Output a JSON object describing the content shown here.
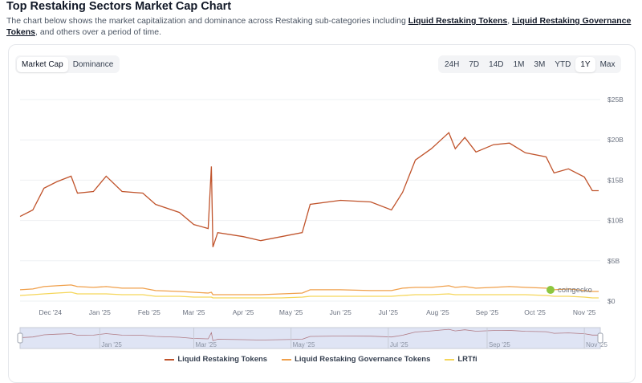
{
  "header": {
    "title": "Top Restaking Sectors Market Cap Chart",
    "desc_pre": "The chart below shows the market capitalization and dominance across Restaking sub-categories including ",
    "link1": "Liquid Restaking Tokens",
    "sep": ", ",
    "link2": "Liquid Restaking Governance Tokens",
    "desc_post": ", and others over a period of time."
  },
  "view_toggle": [
    {
      "label": "Market Cap",
      "active": true
    },
    {
      "label": "Dominance",
      "active": false
    }
  ],
  "ranges": [
    {
      "label": "24H"
    },
    {
      "label": "7D"
    },
    {
      "label": "14D"
    },
    {
      "label": "1M"
    },
    {
      "label": "3M"
    },
    {
      "label": "YTD"
    },
    {
      "label": "1Y",
      "active": true
    },
    {
      "label": "Max"
    }
  ],
  "watermark": "coingecko",
  "chart_data": {
    "type": "line",
    "x_range": [
      "2024-11-12",
      "2025-11-11"
    ],
    "ylim": [
      0,
      25
    ],
    "y_unit": "billion USD",
    "y_ticks": [
      "$0",
      "$5B",
      "$10B",
      "$15B",
      "$20B",
      "$25B"
    ],
    "x_ticks": [
      "Dec '24",
      "Jan '25",
      "Feb '25",
      "Mar '25",
      "Apr '25",
      "May '25",
      "Jun '25",
      "Jul '25",
      "Aug '25",
      "Sep '25",
      "Oct '25",
      "Nov '25"
    ],
    "navigator_ticks": [
      "Jan '25",
      "Mar '25",
      "May '25",
      "Jul '25",
      "Sep '25",
      "Nov '25"
    ],
    "grid": true,
    "legend_position": "bottom",
    "x": [
      "2024-11-12",
      "2024-11-20",
      "2024-11-27",
      "2024-12-05",
      "2024-12-14",
      "2024-12-18",
      "2024-12-28",
      "2025-01-05",
      "2025-01-15",
      "2025-01-28",
      "2025-02-05",
      "2025-02-20",
      "2025-03-01",
      "2025-03-10",
      "2025-03-12",
      "2025-03-13",
      "2025-03-16",
      "2025-04-01",
      "2025-04-12",
      "2025-04-25",
      "2025-05-08",
      "2025-05-13",
      "2025-06-01",
      "2025-06-20",
      "2025-07-03",
      "2025-07-10",
      "2025-07-18",
      "2025-07-28",
      "2025-08-08",
      "2025-08-12",
      "2025-08-18",
      "2025-08-25",
      "2025-09-05",
      "2025-09-15",
      "2025-09-25",
      "2025-10-08",
      "2025-10-13",
      "2025-10-22",
      "2025-11-01",
      "2025-11-06",
      "2025-11-10"
    ],
    "series": [
      {
        "name": "Liquid Restaking Tokens",
        "color": "#c0532b",
        "values": [
          10.5,
          11.3,
          14.0,
          14.8,
          15.5,
          13.4,
          13.6,
          15.5,
          13.6,
          13.4,
          12.0,
          11.0,
          9.5,
          9.0,
          16.7,
          6.7,
          8.5,
          8.0,
          7.5,
          8.0,
          8.5,
          12.0,
          12.5,
          12.3,
          11.3,
          13.5,
          17.5,
          18.9,
          20.9,
          18.9,
          20.3,
          18.5,
          19.4,
          19.6,
          18.4,
          17.9,
          15.9,
          16.4,
          15.4,
          13.7,
          13.7
        ]
      },
      {
        "name": "Liquid Restaking Governance Tokens",
        "color": "#f0a04b",
        "values": [
          1.4,
          1.5,
          1.8,
          1.9,
          2.0,
          1.8,
          1.7,
          1.8,
          1.6,
          1.6,
          1.3,
          1.2,
          1.1,
          1.0,
          1.1,
          0.8,
          0.8,
          0.8,
          0.8,
          0.9,
          1.0,
          1.4,
          1.4,
          1.3,
          1.3,
          1.6,
          1.7,
          1.7,
          1.9,
          1.7,
          1.8,
          1.6,
          1.7,
          1.8,
          1.7,
          1.6,
          1.4,
          1.5,
          1.3,
          1.2,
          1.2
        ]
      },
      {
        "name": "LRTfi",
        "color": "#f5d65a",
        "values": [
          0.7,
          0.8,
          0.9,
          1.0,
          1.1,
          0.9,
          0.9,
          0.9,
          0.8,
          0.8,
          0.6,
          0.6,
          0.5,
          0.5,
          0.5,
          0.4,
          0.4,
          0.4,
          0.4,
          0.4,
          0.5,
          0.6,
          0.6,
          0.6,
          0.6,
          0.7,
          0.8,
          0.8,
          0.9,
          0.8,
          0.8,
          0.8,
          0.8,
          0.8,
          0.8,
          0.7,
          0.6,
          0.6,
          0.5,
          0.4,
          0.4
        ]
      }
    ]
  }
}
